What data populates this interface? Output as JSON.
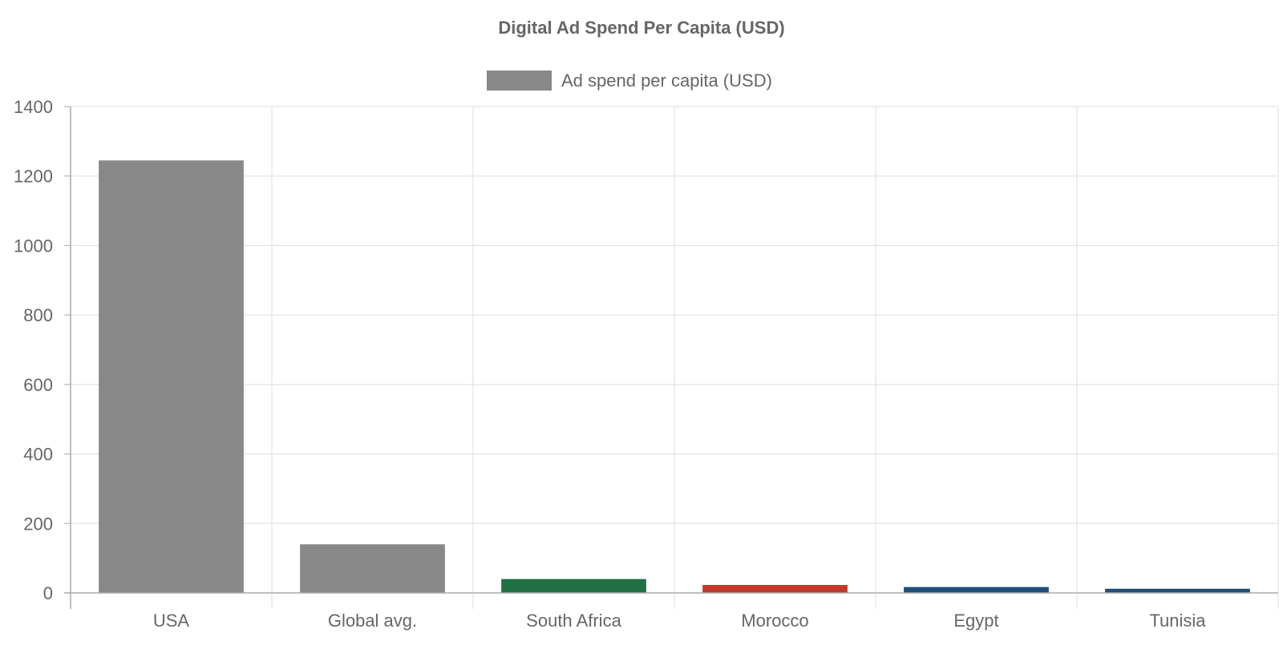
{
  "chart_data": {
    "type": "bar",
    "title": "Digital Ad Spend Per Capita (USD)",
    "legend": {
      "position": "top-center",
      "entries": [
        {
          "label": "Ad spend per capita (USD)",
          "color": "#888888"
        }
      ]
    },
    "categories": [
      "USA",
      "Global avg.",
      "South Africa",
      "Morocco",
      "Egypt",
      "Tunisia"
    ],
    "series": [
      {
        "name": "Ad spend per capita (USD)",
        "values": [
          1245,
          140,
          40,
          23,
          17,
          12
        ],
        "colors": [
          "#888888",
          "#888888",
          "#217041",
          "#c0392b",
          "#1f4e79",
          "#1f4e79"
        ]
      }
    ],
    "ylim": [
      0,
      1400
    ],
    "yticks": [
      0,
      200,
      400,
      600,
      800,
      1000,
      1200,
      1400
    ],
    "xlabel": "",
    "ylabel": "",
    "grid": true
  }
}
